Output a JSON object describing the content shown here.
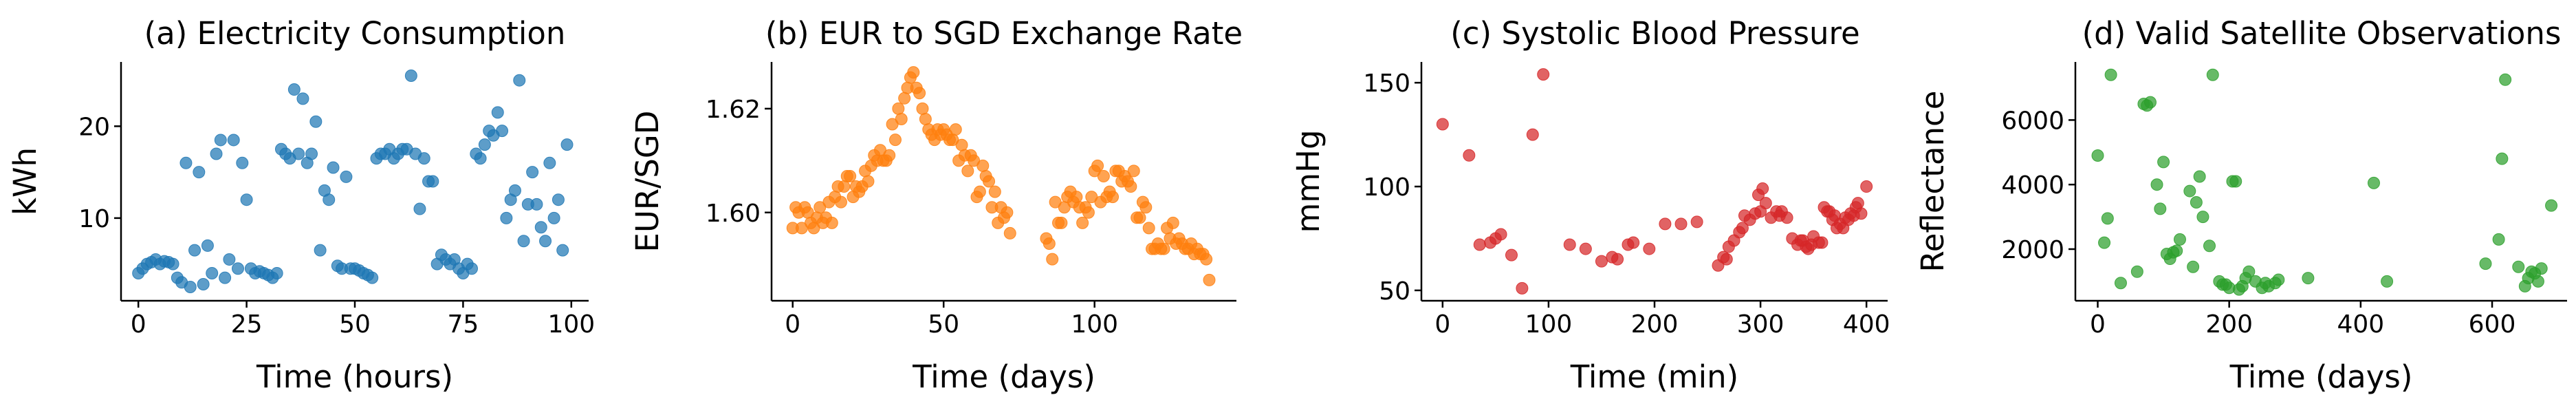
{
  "chart_data": [
    {
      "type": "scatter",
      "title": "(a) Electricity Consumption",
      "xlabel": "Time (hours)",
      "ylabel": "kWh",
      "xlim": [
        -4,
        104
      ],
      "ylim": [
        1,
        27
      ],
      "xticks": [
        0,
        25,
        50,
        75,
        100
      ],
      "yticks": [
        10,
        20
      ],
      "grid": false,
      "color": "#1f77b4",
      "points": [
        [
          0,
          4.0
        ],
        [
          1,
          4.5
        ],
        [
          2,
          5.0
        ],
        [
          3,
          5.2
        ],
        [
          4,
          5.5
        ],
        [
          5,
          5.0
        ],
        [
          6,
          5.3
        ],
        [
          7,
          5.2
        ],
        [
          8,
          5.0
        ],
        [
          9,
          3.5
        ],
        [
          10,
          3.0
        ],
        [
          11,
          16.0
        ],
        [
          12,
          2.5
        ],
        [
          13,
          6.5
        ],
        [
          14,
          15.0
        ],
        [
          15,
          2.8
        ],
        [
          16,
          7.0
        ],
        [
          17,
          4.0
        ],
        [
          18,
          17.0
        ],
        [
          19,
          18.5
        ],
        [
          20,
          3.5
        ],
        [
          21,
          5.5
        ],
        [
          22,
          18.5
        ],
        [
          23,
          4.5
        ],
        [
          24,
          16.0
        ],
        [
          25,
          12.0
        ],
        [
          26,
          4.5
        ],
        [
          27,
          4.0
        ],
        [
          28,
          4.2
        ],
        [
          29,
          4.0
        ],
        [
          30,
          3.8
        ],
        [
          31,
          3.5
        ],
        [
          32,
          4.0
        ],
        [
          33,
          17.5
        ],
        [
          34,
          17.0
        ],
        [
          35,
          16.5
        ],
        [
          36,
          24.0
        ],
        [
          37,
          17.0
        ],
        [
          38,
          23.0
        ],
        [
          39,
          16.0
        ],
        [
          40,
          17.0
        ],
        [
          41,
          20.5
        ],
        [
          42,
          6.5
        ],
        [
          43,
          13.0
        ],
        [
          44,
          12.0
        ],
        [
          45,
          15.5
        ],
        [
          46,
          4.8
        ],
        [
          47,
          4.5
        ],
        [
          48,
          14.5
        ],
        [
          49,
          4.5
        ],
        [
          50,
          4.5
        ],
        [
          51,
          4.3
        ],
        [
          52,
          4.0
        ],
        [
          53,
          3.8
        ],
        [
          54,
          3.5
        ],
        [
          55,
          16.5
        ],
        [
          56,
          17.0
        ],
        [
          57,
          17.0
        ],
        [
          58,
          17.5
        ],
        [
          59,
          16.5
        ],
        [
          60,
          17.0
        ],
        [
          61,
          17.5
        ],
        [
          62,
          17.5
        ],
        [
          63,
          25.5
        ],
        [
          64,
          17.0
        ],
        [
          65,
          11.0
        ],
        [
          66,
          16.5
        ],
        [
          67,
          14.0
        ],
        [
          68,
          14.0
        ],
        [
          69,
          5.0
        ],
        [
          70,
          6.0
        ],
        [
          71,
          5.5
        ],
        [
          72,
          5.0
        ],
        [
          73,
          5.5
        ],
        [
          74,
          4.5
        ],
        [
          75,
          4.0
        ],
        [
          76,
          5.0
        ],
        [
          77,
          4.5
        ],
        [
          78,
          17.0
        ],
        [
          79,
          16.5
        ],
        [
          80,
          18.0
        ],
        [
          81,
          19.5
        ],
        [
          82,
          19.0
        ],
        [
          83,
          21.5
        ],
        [
          84,
          19.5
        ],
        [
          85,
          10.0
        ],
        [
          86,
          12.0
        ],
        [
          87,
          13.0
        ],
        [
          88,
          25.0
        ],
        [
          89,
          7.5
        ],
        [
          90,
          11.5
        ],
        [
          91,
          15.0
        ],
        [
          92,
          11.5
        ],
        [
          93,
          9.0
        ],
        [
          94,
          7.5
        ],
        [
          95,
          16.0
        ],
        [
          96,
          10.0
        ],
        [
          97,
          12.0
        ],
        [
          98,
          6.5
        ],
        [
          99,
          18.0
        ]
      ]
    },
    {
      "type": "scatter",
      "title": "(b) EUR to SGD Exchange Rate",
      "xlabel": "Time (days)",
      "ylabel": "EUR/SGD",
      "xlim": [
        -7,
        147
      ],
      "ylim": [
        1.583,
        1.629
      ],
      "xticks": [
        0,
        50,
        100
      ],
      "yticks": [
        1.6,
        1.62
      ],
      "ytick_labels": [
        "1.60",
        "1.62"
      ],
      "grid": false,
      "color": "#ff7f0e",
      "points": [
        [
          0,
          1.597
        ],
        [
          1,
          1.601
        ],
        [
          2,
          1.6
        ],
        [
          3,
          1.597
        ],
        [
          4,
          1.601
        ],
        [
          5,
          1.6
        ],
        [
          6,
          1.598
        ],
        [
          7,
          1.597
        ],
        [
          8,
          1.599
        ],
        [
          9,
          1.601
        ],
        [
          10,
          1.598
        ],
        [
          11,
          1.599
        ],
        [
          12,
          1.602
        ],
        [
          13,
          1.598
        ],
        [
          14,
          1.603
        ],
        [
          15,
          1.605
        ],
        [
          16,
          1.602
        ],
        [
          17,
          1.605
        ],
        [
          18,
          1.607
        ],
        [
          19,
          1.607
        ],
        [
          20,
          1.603
        ],
        [
          21,
          1.605
        ],
        [
          22,
          1.604
        ],
        [
          23,
          1.605
        ],
        [
          24,
          1.608
        ],
        [
          25,
          1.606
        ],
        [
          26,
          1.609
        ],
        [
          27,
          1.611
        ],
        [
          28,
          1.61
        ],
        [
          29,
          1.612
        ],
        [
          30,
          1.61
        ],
        [
          31,
          1.61
        ],
        [
          32,
          1.611
        ],
        [
          33,
          1.617
        ],
        [
          34,
          1.614
        ],
        [
          35,
          1.62
        ],
        [
          36,
          1.618
        ],
        [
          37,
          1.622
        ],
        [
          38,
          1.624
        ],
        [
          39,
          1.626
        ],
        [
          40,
          1.627
        ],
        [
          41,
          1.624
        ],
        [
          42,
          1.623
        ],
        [
          43,
          1.62
        ],
        [
          44,
          1.618
        ],
        [
          45,
          1.616
        ],
        [
          46,
          1.615
        ],
        [
          47,
          1.614
        ],
        [
          48,
          1.616
        ],
        [
          49,
          1.615
        ],
        [
          50,
          1.616
        ],
        [
          51,
          1.615
        ],
        [
          52,
          1.614
        ],
        [
          53,
          1.614
        ],
        [
          54,
          1.616
        ],
        [
          55,
          1.61
        ],
        [
          56,
          1.613
        ],
        [
          57,
          1.611
        ],
        [
          58,
          1.608
        ],
        [
          59,
          1.611
        ],
        [
          60,
          1.61
        ],
        [
          61,
          1.603
        ],
        [
          62,
          1.604
        ],
        [
          63,
          1.609
        ],
        [
          64,
          1.607
        ],
        [
          65,
          1.606
        ],
        [
          66,
          1.601
        ],
        [
          67,
          1.604
        ],
        [
          68,
          1.598
        ],
        [
          69,
          1.601
        ],
        [
          70,
          1.599
        ],
        [
          71,
          1.6
        ],
        [
          72,
          1.596
        ],
        [
          84,
          1.595
        ],
        [
          85,
          1.594
        ],
        [
          86,
          1.591
        ],
        [
          87,
          1.602
        ],
        [
          88,
          1.598
        ],
        [
          89,
          1.598
        ],
        [
          90,
          1.601
        ],
        [
          91,
          1.603
        ],
        [
          92,
          1.604
        ],
        [
          93,
          1.602
        ],
        [
          94,
          1.603
        ],
        [
          95,
          1.601
        ],
        [
          96,
          1.598
        ],
        [
          97,
          1.601
        ],
        [
          98,
          1.6
        ],
        [
          99,
          1.603
        ],
        [
          100,
          1.608
        ],
        [
          101,
          1.609
        ],
        [
          102,
          1.602
        ],
        [
          103,
          1.607
        ],
        [
          104,
          1.603
        ],
        [
          105,
          1.604
        ],
        [
          106,
          1.603
        ],
        [
          107,
          1.608
        ],
        [
          108,
          1.608
        ],
        [
          109,
          1.606
        ],
        [
          110,
          1.607
        ],
        [
          111,
          1.606
        ],
        [
          112,
          1.605
        ],
        [
          113,
          1.608
        ],
        [
          114,
          1.599
        ],
        [
          115,
          1.599
        ],
        [
          116,
          1.602
        ],
        [
          117,
          1.601
        ],
        [
          118,
          1.597
        ],
        [
          119,
          1.593
        ],
        [
          120,
          1.593
        ],
        [
          121,
          1.594
        ],
        [
          122,
          1.593
        ],
        [
          123,
          1.593
        ],
        [
          124,
          1.597
        ],
        [
          125,
          1.595
        ],
        [
          126,
          1.598
        ],
        [
          127,
          1.594
        ],
        [
          128,
          1.595
        ],
        [
          129,
          1.594
        ],
        [
          130,
          1.593
        ],
        [
          131,
          1.593
        ],
        [
          132,
          1.594
        ],
        [
          133,
          1.592
        ],
        [
          134,
          1.593
        ],
        [
          135,
          1.592
        ],
        [
          136,
          1.592
        ],
        [
          137,
          1.591
        ],
        [
          138,
          1.587
        ]
      ]
    },
    {
      "type": "scatter",
      "title": "(c) Systolic Blood Pressure",
      "xlabel": "Time (min)",
      "ylabel": "mmHg",
      "xlim": [
        -20,
        420
      ],
      "ylim": [
        45,
        160
      ],
      "xticks": [
        0,
        100,
        200,
        300,
        400
      ],
      "yticks": [
        50,
        100,
        150
      ],
      "grid": false,
      "color": "#d62728",
      "points": [
        [
          0,
          130
        ],
        [
          25,
          115
        ],
        [
          35,
          72
        ],
        [
          45,
          73
        ],
        [
          50,
          75
        ],
        [
          55,
          77
        ],
        [
          65,
          67
        ],
        [
          75,
          51
        ],
        [
          85,
          125
        ],
        [
          95,
          154
        ],
        [
          120,
          72
        ],
        [
          135,
          70
        ],
        [
          150,
          64
        ],
        [
          160,
          66
        ],
        [
          165,
          65
        ],
        [
          175,
          72
        ],
        [
          180,
          73
        ],
        [
          195,
          70
        ],
        [
          210,
          82
        ],
        [
          225,
          82
        ],
        [
          240,
          83
        ],
        [
          260,
          62
        ],
        [
          265,
          66
        ],
        [
          270,
          71
        ],
        [
          275,
          74
        ],
        [
          280,
          78
        ],
        [
          285,
          86
        ],
        [
          290,
          84
        ],
        [
          295,
          87
        ],
        [
          300,
          88
        ],
        [
          305,
          92
        ],
        [
          310,
          85
        ],
        [
          315,
          88
        ],
        [
          320,
          88
        ],
        [
          325,
          85
        ],
        [
          330,
          75
        ],
        [
          335,
          72
        ],
        [
          340,
          74
        ],
        [
          345,
          70
        ],
        [
          350,
          76
        ],
        [
          355,
          73
        ],
        [
          360,
          90
        ],
        [
          365,
          88
        ],
        [
          370,
          86
        ],
        [
          375,
          82
        ],
        [
          380,
          85
        ],
        [
          385,
          87
        ],
        [
          390,
          90
        ],
        [
          395,
          87
        ],
        [
          400,
          100
        ],
        [
          268,
          65
        ],
        [
          283,
          80
        ],
        [
          298,
          96
        ],
        [
          302,
          99
        ],
        [
          318,
          86
        ],
        [
          338,
          74
        ],
        [
          343,
          71
        ],
        [
          348,
          72
        ],
        [
          358,
          73
        ],
        [
          363,
          88
        ],
        [
          368,
          84
        ],
        [
          372,
          80
        ],
        [
          378,
          80
        ],
        [
          383,
          84
        ],
        [
          388,
          86
        ],
        [
          392,
          92
        ]
      ]
    },
    {
      "type": "scatter",
      "title": "(d) Valid Satellite Observations",
      "xlabel": "Time (days)",
      "ylabel": "Reflectance",
      "xlim": [
        -34,
        714
      ],
      "ylim": [
        400,
        7800
      ],
      "xticks": [
        0,
        200,
        400,
        600
      ],
      "yticks": [
        2000,
        4000,
        6000
      ],
      "grid": false,
      "color": "#2ca02c",
      "points": [
        [
          0,
          4900
        ],
        [
          10,
          2200
        ],
        [
          15,
          2950
        ],
        [
          20,
          7400
        ],
        [
          35,
          950
        ],
        [
          60,
          1300
        ],
        [
          70,
          6500
        ],
        [
          75,
          6450
        ],
        [
          80,
          6550
        ],
        [
          90,
          4000
        ],
        [
          95,
          3250
        ],
        [
          100,
          4700
        ],
        [
          105,
          1850
        ],
        [
          110,
          1700
        ],
        [
          115,
          1900
        ],
        [
          120,
          1950
        ],
        [
          125,
          2300
        ],
        [
          140,
          3800
        ],
        [
          145,
          1450
        ],
        [
          150,
          3450
        ],
        [
          155,
          4250
        ],
        [
          160,
          3000
        ],
        [
          170,
          2100
        ],
        [
          175,
          7400
        ],
        [
          185,
          1000
        ],
        [
          190,
          900
        ],
        [
          195,
          900
        ],
        [
          200,
          800
        ],
        [
          205,
          4100
        ],
        [
          210,
          4100
        ],
        [
          215,
          750
        ],
        [
          220,
          850
        ],
        [
          225,
          1100
        ],
        [
          230,
          1300
        ],
        [
          240,
          1000
        ],
        [
          250,
          800
        ],
        [
          255,
          950
        ],
        [
          260,
          850
        ],
        [
          270,
          950
        ],
        [
          275,
          1050
        ],
        [
          320,
          1100
        ],
        [
          420,
          4050
        ],
        [
          440,
          1000
        ],
        [
          590,
          1550
        ],
        [
          610,
          2300
        ],
        [
          615,
          4800
        ],
        [
          620,
          7250
        ],
        [
          640,
          1450
        ],
        [
          650,
          850
        ],
        [
          655,
          1100
        ],
        [
          660,
          1300
        ],
        [
          665,
          1250
        ],
        [
          670,
          1000
        ],
        [
          675,
          1400
        ],
        [
          690,
          3350
        ]
      ]
    }
  ]
}
